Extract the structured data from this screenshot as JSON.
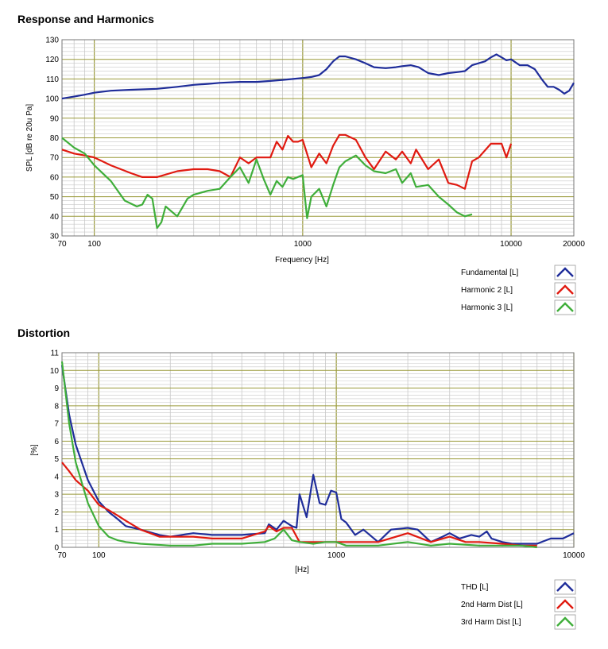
{
  "titles": {
    "response": "Response and Harmonics",
    "distortion": "Distortion"
  },
  "colors": {
    "fundamental": "#1f2d9a",
    "harmonic2": "#e01a10",
    "harmonic3": "#3fae3a",
    "grid_major": "#9a9a3a",
    "grid_minor": "#c8c8c8"
  },
  "chart_data": [
    {
      "type": "line",
      "title": "Response and Harmonics",
      "xlabel": "Frequency [Hz]",
      "ylabel": "SPL [dB re 20u Pa]",
      "x_scale": "log",
      "xlim": [
        70,
        20000
      ],
      "ylim": [
        30,
        130
      ],
      "x_ticks": [
        "70",
        "100",
        "1000",
        "10000",
        "20000"
      ],
      "y_ticks": [
        "30",
        "40",
        "50",
        "60",
        "70",
        "80",
        "90",
        "100",
        "110",
        "120",
        "130"
      ],
      "series": [
        {
          "name": "Fundamental [L]",
          "x": [
            70,
            80,
            90,
            100,
            120,
            150,
            200,
            250,
            300,
            350,
            400,
            500,
            600,
            700,
            800,
            900,
            1000,
            1100,
            1200,
            1300,
            1400,
            1500,
            1600,
            1800,
            2000,
            2200,
            2500,
            2800,
            3000,
            3300,
            3600,
            4000,
            4500,
            5000,
            5500,
            6000,
            6500,
            7000,
            7500,
            8000,
            8500,
            9000,
            9500,
            10000,
            11000,
            12000,
            13000,
            14000,
            15000,
            16000,
            17000,
            18000,
            19000,
            20000
          ],
          "y": [
            100,
            101,
            102,
            103,
            104,
            104.5,
            105,
            106,
            107,
            107.5,
            108,
            108.5,
            108.5,
            109,
            109.5,
            110,
            110.5,
            111,
            112,
            115,
            119,
            121.5,
            121.5,
            120,
            118,
            116,
            115.5,
            116,
            116.5,
            117,
            116,
            113,
            112,
            113,
            113.5,
            114,
            117,
            118,
            119,
            121,
            122.5,
            121,
            119.5,
            120,
            117,
            117,
            115,
            110,
            106,
            106,
            104.5,
            102.5,
            104,
            108
          ]
        },
        {
          "name": "Harmonic 2 [L]",
          "x": [
            70,
            80,
            90,
            100,
            120,
            150,
            170,
            200,
            250,
            300,
            350,
            400,
            450,
            500,
            550,
            600,
            700,
            750,
            800,
            850,
            900,
            950,
            1000,
            1100,
            1200,
            1300,
            1400,
            1500,
            1600,
            1800,
            2000,
            2200,
            2500,
            2800,
            3000,
            3300,
            3500,
            4000,
            4500,
            5000,
            5500,
            6000,
            6500,
            7000,
            8000,
            9000,
            9500,
            10000
          ],
          "y": [
            74,
            72,
            71,
            70,
            66,
            62,
            60,
            60,
            63,
            64,
            64,
            63,
            60,
            70,
            67,
            70,
            70,
            78,
            74,
            81,
            78,
            78,
            79,
            65,
            72,
            67,
            76,
            81.5,
            81.5,
            79,
            70,
            64,
            73,
            69,
            73,
            67,
            74,
            64,
            69,
            57,
            56,
            54,
            68,
            70,
            77,
            77,
            70,
            77
          ]
        },
        {
          "name": "Harmonic 3 [L]",
          "x": [
            70,
            80,
            90,
            100,
            120,
            140,
            160,
            170,
            180,
            190,
            200,
            210,
            220,
            250,
            280,
            300,
            350,
            400,
            450,
            500,
            550,
            600,
            650,
            700,
            750,
            800,
            850,
            900,
            1000,
            1050,
            1100,
            1200,
            1300,
            1400,
            1500,
            1600,
            1800,
            2000,
            2200,
            2500,
            2800,
            3000,
            3300,
            3500,
            4000,
            4500,
            5000,
            5500,
            6000,
            6500
          ],
          "y": [
            80,
            75,
            72,
            66,
            58,
            48,
            45,
            46,
            51,
            49,
            34,
            37,
            45,
            40,
            49,
            51,
            53,
            54,
            60,
            65,
            57,
            69,
            59,
            51,
            58,
            55,
            60,
            59,
            61,
            39,
            50,
            54,
            45,
            56,
            65,
            68,
            71,
            66,
            63,
            62,
            64,
            57,
            62,
            55,
            56,
            50,
            46,
            42,
            40,
            41
          ]
        }
      ]
    },
    {
      "type": "line",
      "title": "Distortion",
      "xlabel": "[Hz]",
      "ylabel": "[%]",
      "x_scale": "log",
      "xlim": [
        70,
        10000
      ],
      "ylim": [
        0,
        11
      ],
      "x_ticks": [
        "70",
        "100",
        "1000",
        "10000"
      ],
      "y_ticks": [
        "0",
        "1",
        "2",
        "3",
        "4",
        "5",
        "6",
        "7",
        "8",
        "9",
        "10",
        "11"
      ],
      "series": [
        {
          "name": "THD [L]",
          "x": [
            70,
            75,
            80,
            90,
            100,
            110,
            120,
            130,
            150,
            180,
            200,
            250,
            300,
            400,
            500,
            520,
            560,
            600,
            650,
            680,
            700,
            750,
            800,
            850,
            900,
            950,
            1000,
            1050,
            1100,
            1200,
            1300,
            1500,
            1700,
            2000,
            2200,
            2500,
            2800,
            3000,
            3300,
            3700,
            4000,
            4300,
            4500,
            5000,
            5500,
            6000,
            7000,
            8000,
            9000,
            10000
          ],
          "y": [
            10.3,
            7.5,
            5.8,
            3.8,
            2.6,
            2.0,
            1.6,
            1.2,
            1.0,
            0.7,
            0.6,
            0.8,
            0.7,
            0.7,
            0.8,
            1.3,
            1.0,
            1.5,
            1.2,
            1.1,
            3.0,
            1.7,
            4.1,
            2.5,
            2.4,
            3.2,
            3.1,
            1.6,
            1.4,
            0.7,
            1.0,
            0.3,
            1.0,
            1.1,
            1.0,
            0.3,
            0.6,
            0.8,
            0.5,
            0.7,
            0.6,
            0.9,
            0.5,
            0.3,
            0.2,
            0.2,
            0.2,
            0.5,
            0.5,
            0.8
          ]
        },
        {
          "name": "2nd Harm Dist [L]",
          "x": [
            70,
            75,
            80,
            90,
            100,
            110,
            120,
            130,
            150,
            180,
            200,
            250,
            300,
            400,
            500,
            520,
            560,
            600,
            650,
            700,
            750,
            800,
            900,
            1000,
            1200,
            1500,
            2000,
            2500,
            3000,
            3500,
            4000,
            5000,
            6000,
            7000
          ],
          "y": [
            4.8,
            4.3,
            3.8,
            3.2,
            2.4,
            2.1,
            1.8,
            1.5,
            1.0,
            0.6,
            0.6,
            0.6,
            0.5,
            0.5,
            0.9,
            1.2,
            0.9,
            1.1,
            1.1,
            0.3,
            0.3,
            0.3,
            0.3,
            0.3,
            0.3,
            0.3,
            0.8,
            0.3,
            0.6,
            0.3,
            0.3,
            0.2,
            0.1,
            0.1
          ]
        },
        {
          "name": "3rd Harm Dist [L]",
          "x": [
            70,
            75,
            80,
            90,
            100,
            110,
            120,
            130,
            150,
            200,
            250,
            300,
            400,
            500,
            550,
            600,
            650,
            700,
            800,
            900,
            1000,
            1100,
            1200,
            1500,
            2000,
            2500,
            3000,
            4000,
            5000,
            6000,
            7000
          ],
          "y": [
            10.5,
            7.0,
            4.8,
            2.5,
            1.2,
            0.6,
            0.4,
            0.3,
            0.2,
            0.1,
            0.1,
            0.2,
            0.2,
            0.3,
            0.5,
            1.0,
            0.4,
            0.3,
            0.2,
            0.3,
            0.3,
            0.1,
            0.1,
            0.1,
            0.3,
            0.1,
            0.2,
            0.1,
            0.1,
            0.1,
            0.0
          ]
        }
      ]
    }
  ]
}
